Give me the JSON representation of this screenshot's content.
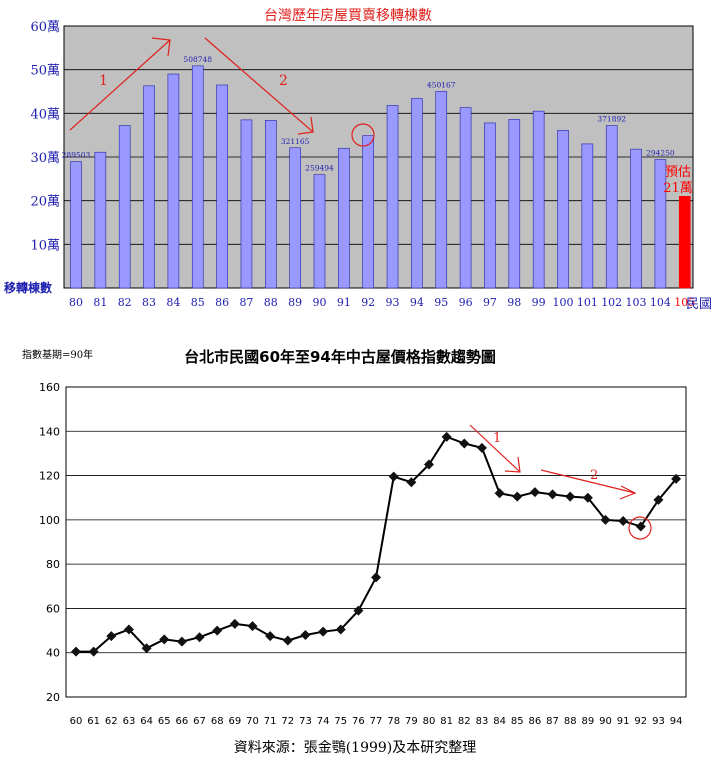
{
  "chart_data": [
    {
      "type": "bar",
      "title": "台灣歷年房屋買賣移轉棟數",
      "ylabel": "移轉棟數",
      "xlabel": "民國",
      "categories": [
        "80",
        "81",
        "82",
        "83",
        "84",
        "85",
        "86",
        "87",
        "88",
        "89",
        "90",
        "91",
        "92",
        "93",
        "94",
        "95",
        "96",
        "97",
        "98",
        "99",
        "100",
        "101",
        "102",
        "103",
        "104",
        "105"
      ],
      "values": [
        289503,
        311000,
        372000,
        463000,
        490000,
        508748,
        465000,
        385000,
        384000,
        321165,
        259494,
        320000,
        349000,
        418000,
        434000,
        450167,
        413000,
        378000,
        386000,
        405000,
        361000,
        330000,
        371892,
        318000,
        294250,
        210000
      ],
      "ylim": [
        0,
        600000
      ],
      "yticks": [
        "10萬",
        "20萬",
        "30萬",
        "40萬",
        "50萬",
        "60萬"
      ],
      "highlight_index": 25,
      "bar_color": "#9999ff",
      "highlight_color": "#ff0000",
      "title_color": "#e0201c",
      "axis_label_color": "#2020b0",
      "plot_bg": "#c0c0c0",
      "data_labels": [
        {
          "index": 0,
          "text": "289503"
        },
        {
          "index": 5,
          "text": "508748"
        },
        {
          "index": 9,
          "text": "321165"
        },
        {
          "index": 10,
          "text": "259494"
        },
        {
          "index": 15,
          "text": "450167"
        },
        {
          "index": 22,
          "text": "371892"
        },
        {
          "index": 24,
          "text": "294250"
        }
      ],
      "estimate_label": [
        "預估",
        "21萬"
      ],
      "annotations": [
        "1",
        "2"
      ],
      "grid": true
    },
    {
      "type": "line",
      "title": "台北市民國60年至94年中古屋價格指數趨勢圖",
      "subtitle": "指數基期=90年",
      "source": "資料來源：張金鶚(1999)及本研究整理",
      "x": [
        "60",
        "61",
        "62",
        "63",
        "64",
        "65",
        "66",
        "67",
        "68",
        "69",
        "70",
        "71",
        "72",
        "73",
        "74",
        "75",
        "76",
        "77",
        "78",
        "79",
        "80",
        "81",
        "82",
        "83",
        "84",
        "85",
        "86",
        "87",
        "88",
        "89",
        "90",
        "91",
        "92",
        "93",
        "94"
      ],
      "y": [
        40.5,
        40.5,
        47.5,
        50.5,
        42,
        46,
        45,
        47,
        50,
        53,
        52,
        47.5,
        45.5,
        48,
        49.5,
        50.5,
        59,
        74,
        119.5,
        117,
        125,
        137.5,
        134.5,
        132.5,
        112,
        110.5,
        112.5,
        111.5,
        110.5,
        110,
        100,
        99.5,
        97,
        109,
        118.5
      ],
      "ylim": [
        20,
        160
      ],
      "yticks": [
        "20",
        "40",
        "60",
        "80",
        "100",
        "120",
        "140",
        "160"
      ],
      "grid": true,
      "annotations": [
        "1",
        "2"
      ]
    }
  ]
}
